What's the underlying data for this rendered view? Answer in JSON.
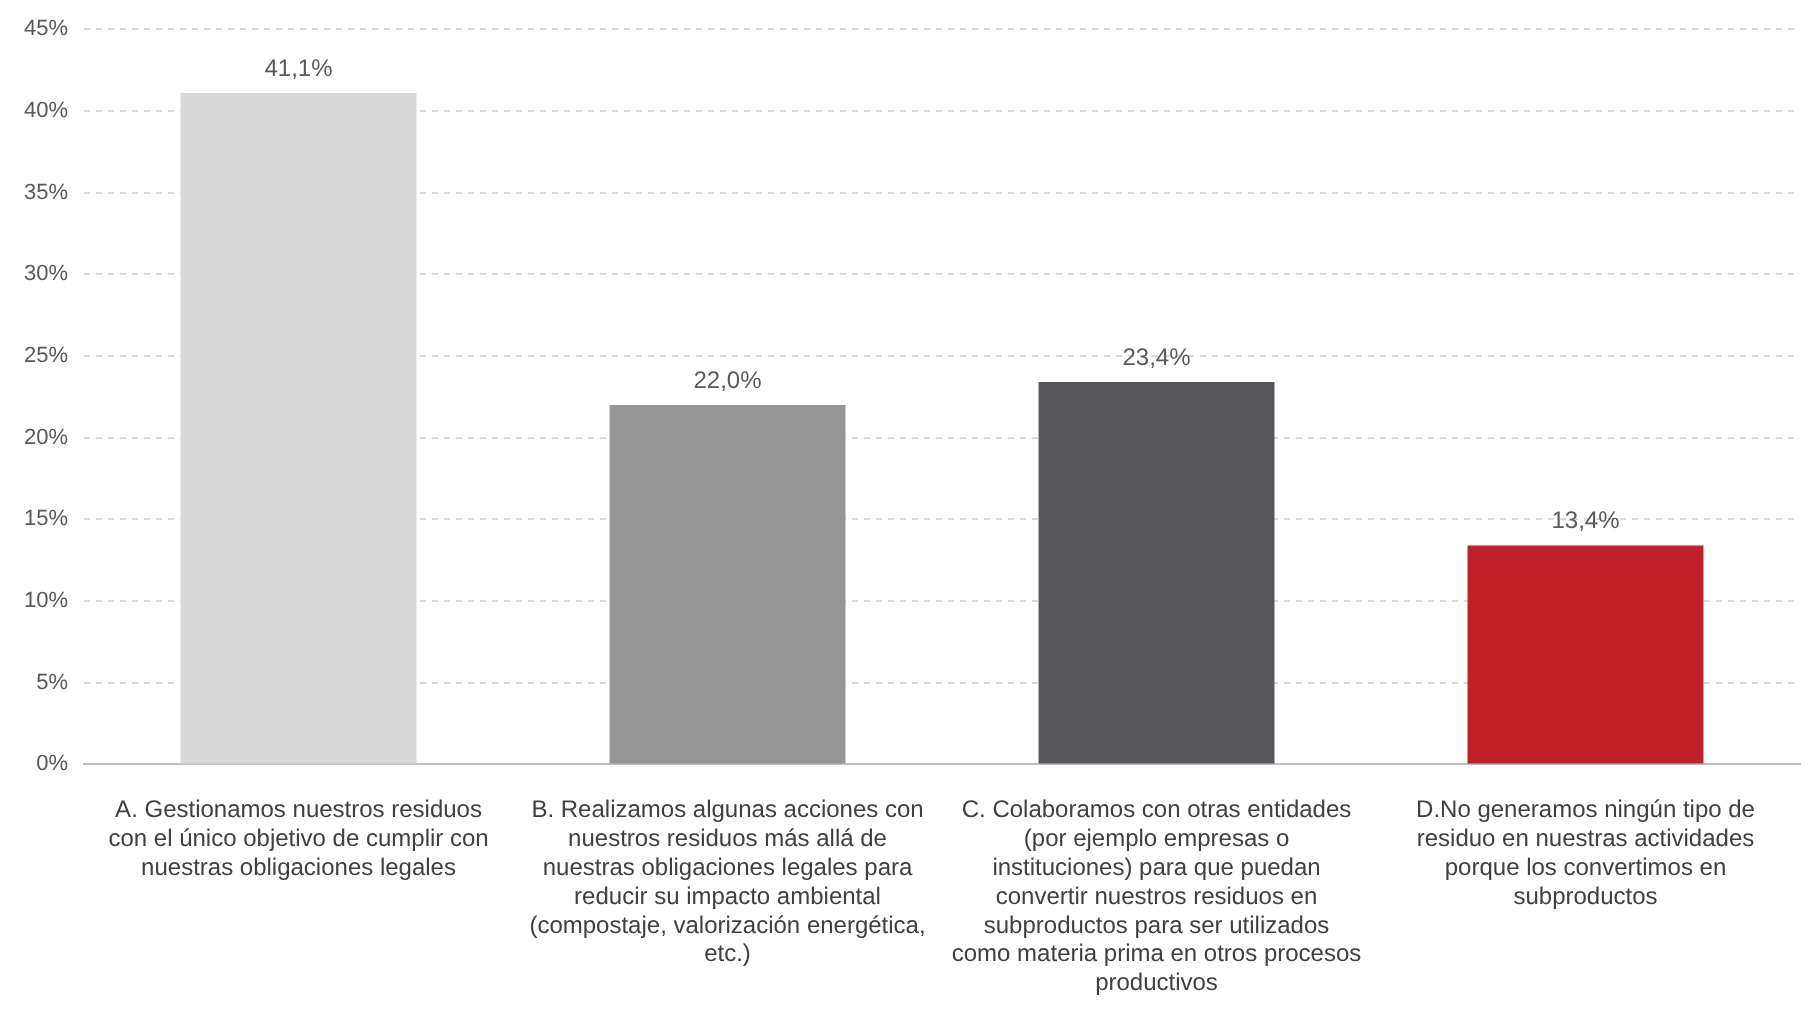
{
  "chart_data": {
    "type": "bar",
    "categories": [
      "A. Gestionamos nuestros residuos con el único objetivo de cumplir con nuestras obligaciones legales",
      "B. Realizamos algunas acciones con nuestros residuos más allá de nuestras obligaciones legales para reducir su impacto ambiental (compostaje, valorización energética, etc.)",
      "C. Colaboramos con otras entidades (por ejemplo empresas o instituciones) para que puedan convertir nuestros residuos en subproductos para ser utilizados como materia prima en otros procesos productivos",
      "D.No generamos ningún tipo de residuo en nuestras actividades porque los convertimos en subproductos"
    ],
    "values": [
      41.1,
      22.0,
      23.4,
      13.4
    ],
    "colors": [
      "#d9d9d9",
      "#969696",
      "#58575b",
      "#c0202a"
    ],
    "value_labels": [
      "41,1%",
      "22,0%",
      "23,4%",
      "13,4%"
    ],
    "ylim": [
      0,
      45
    ],
    "yticks": [
      {
        "value": 0,
        "label": "0%"
      },
      {
        "value": 5,
        "label": "5%"
      },
      {
        "value": 10,
        "label": "10%"
      },
      {
        "value": 15,
        "label": "15%"
      },
      {
        "value": 20,
        "label": "20%"
      },
      {
        "value": 25,
        "label": "25%"
      },
      {
        "value": 30,
        "label": "30%"
      },
      {
        "value": 35,
        "label": "35%"
      },
      {
        "value": 40,
        "label": "40%"
      },
      {
        "value": 45,
        "label": "45%"
      }
    ],
    "grid": "y",
    "legend": false
  }
}
